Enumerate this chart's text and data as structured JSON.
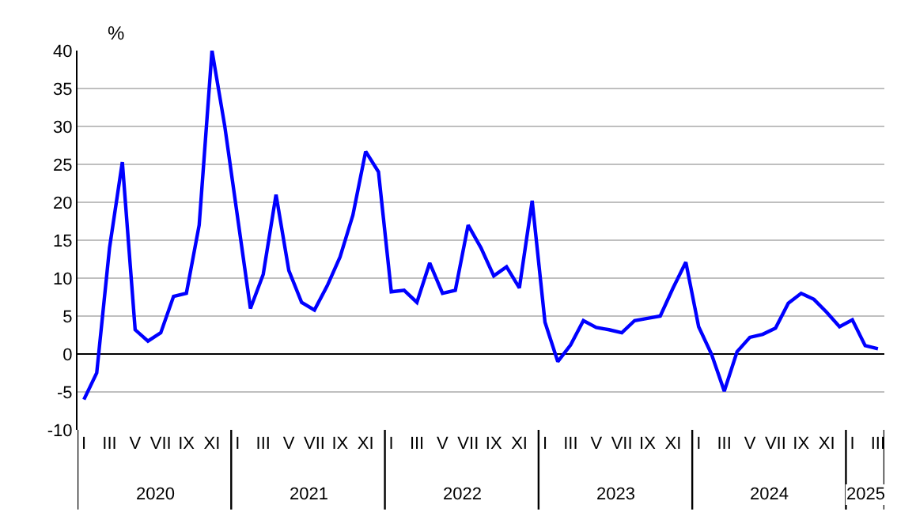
{
  "chart_data": {
    "type": "line",
    "ylabel": "%",
    "categories": [
      "I",
      null,
      "III",
      null,
      "V",
      null,
      "VII",
      null,
      "IX",
      null,
      "XI",
      null,
      "I",
      null,
      "III",
      null,
      "V",
      null,
      "VII",
      null,
      "IX",
      null,
      "XI",
      null,
      "I",
      null,
      "III",
      null,
      "V",
      null,
      "VII",
      null,
      "IX",
      null,
      "XI",
      null,
      "I",
      null,
      "III",
      null,
      "V",
      null,
      "VII",
      null,
      "IX",
      null,
      "XI",
      null,
      "I",
      null,
      "III",
      null,
      "V",
      null,
      "VII",
      null,
      "IX",
      null,
      "XI",
      null,
      "I",
      null,
      "III"
    ],
    "series": [
      {
        "color": "#0000ff",
        "values": [
          -6,
          -2.5,
          14,
          25.3,
          3.2,
          1.7,
          2.8,
          7.6,
          8,
          17,
          40,
          30,
          18,
          6,
          10.5,
          21,
          11,
          6.8,
          5.8,
          9,
          12.8,
          18.3,
          26.7,
          24,
          8.2,
          8.4,
          6.8,
          12,
          8,
          8.4,
          17,
          14,
          10.3,
          11.5,
          8.7,
          20.2,
          4.2,
          -1,
          1.2,
          4.4,
          3.5,
          3.2,
          2.8,
          4.4,
          4.7,
          5,
          8.7,
          12.1,
          3.6,
          0,
          -4.9,
          0.3,
          2.2,
          2.6,
          3.4,
          6.7,
          8,
          7.2,
          5.5,
          3.6,
          4.5,
          1.1,
          0.7
        ]
      }
    ],
    "annotations": [
      "2020",
      "2021",
      "2022",
      "2023",
      "2024",
      "2025"
    ],
    "ylim": [
      -10,
      40
    ],
    "yticks": [
      -10,
      -5,
      0,
      5,
      10,
      15,
      20,
      25,
      30,
      35,
      40
    ],
    "grid": "y",
    "marker": "none",
    "line_style": "solid"
  }
}
